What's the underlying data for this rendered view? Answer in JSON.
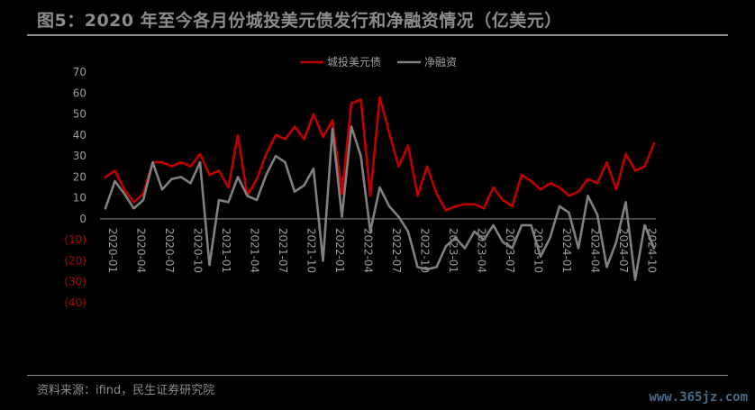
{
  "header": {
    "title": "图5：2020 年至今各月份城投美元债发行和净融资情况（亿美元）"
  },
  "footer": {
    "source": "资料来源：ifind，民生证券研究院",
    "watermark": "www.365jz.com"
  },
  "colors": {
    "series1": "#c00000",
    "series2": "#808080",
    "negative_tick": "#c00000",
    "positive_tick": "#9a9a9a"
  },
  "chart_data": {
    "type": "line",
    "title": "",
    "xlabel": "",
    "ylabel": "",
    "ylim": [
      -40,
      70
    ],
    "yticks": [
      70,
      60,
      50,
      40,
      30,
      20,
      10,
      0,
      -10,
      -20,
      -30,
      -40
    ],
    "ytick_labels": [
      "70",
      "60",
      "50",
      "40",
      "30",
      "20",
      "10",
      "0",
      "(10)",
      "(20)",
      "(30)",
      "(40)"
    ],
    "x": [
      "2020-01",
      "2020-02",
      "2020-03",
      "2020-04",
      "2020-05",
      "2020-06",
      "2020-07",
      "2020-08",
      "2020-09",
      "2020-10",
      "2020-11",
      "2020-12",
      "2021-01",
      "2021-02",
      "2021-03",
      "2021-04",
      "2021-05",
      "2021-06",
      "2021-07",
      "2021-08",
      "2021-09",
      "2021-10",
      "2021-11",
      "2021-12",
      "2022-01",
      "2022-02",
      "2022-03",
      "2022-04",
      "2022-05",
      "2022-06",
      "2022-07",
      "2022-08",
      "2022-09",
      "2022-10",
      "2022-11",
      "2022-12",
      "2023-01",
      "2023-02",
      "2023-03",
      "2023-04",
      "2023-05",
      "2023-06",
      "2023-07",
      "2023-08",
      "2023-09",
      "2023-10",
      "2023-11",
      "2023-12",
      "2024-01",
      "2024-02",
      "2024-03",
      "2024-04",
      "2024-05",
      "2024-06",
      "2024-07",
      "2024-08",
      "2024-09",
      "2024-10",
      "2024-11"
    ],
    "xtick_labels": [
      "2020-01",
      "2020-04",
      "2020-07",
      "2020-10",
      "2021-01",
      "2021-04",
      "2021-07",
      "2021-10",
      "2022-01",
      "2022-04",
      "2022-07",
      "2022-10",
      "2023-01",
      "2023-04",
      "2023-07",
      "2023-10",
      "2024-01",
      "2024-04",
      "2024-07",
      "2024-10"
    ],
    "legend": "top-center",
    "grid": false,
    "series": [
      {
        "name": "城投美元债",
        "color": "#c00000",
        "values": [
          20,
          23,
          14,
          8,
          12,
          27,
          27,
          25,
          27,
          25,
          31,
          21,
          23,
          15,
          40,
          11,
          19,
          31,
          40,
          38,
          44,
          38,
          50,
          39,
          47,
          12,
          55,
          57,
          11,
          58,
          41,
          25,
          35,
          11,
          25,
          12,
          4,
          6,
          7,
          7,
          5,
          15,
          9,
          6,
          21,
          18,
          14,
          17,
          15,
          11,
          13,
          19,
          17,
          27,
          14,
          31,
          23,
          25,
          36
        ]
      },
      {
        "name": "净融资",
        "color": "#808080",
        "values": [
          5,
          18,
          12,
          5,
          9,
          27,
          14,
          19,
          20,
          17,
          27,
          -22,
          9,
          8,
          20,
          11,
          9,
          21,
          30,
          27,
          13,
          16,
          24,
          -20,
          43,
          1,
          44,
          30,
          -6,
          15,
          6,
          1,
          -6,
          -23,
          -24,
          -23,
          -13,
          -9,
          -14,
          -6,
          -10,
          -3,
          -11,
          -14,
          -3,
          -3,
          -18,
          -9,
          6,
          3,
          -14,
          11,
          2,
          -23,
          -11,
          8,
          -29,
          -3,
          -14
        ]
      }
    ]
  }
}
